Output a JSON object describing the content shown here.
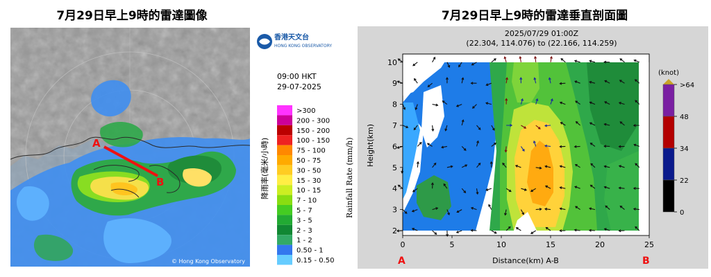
{
  "left_title": "7月29日早上9時的雷達圖像",
  "right_title": "7月29日早上9時的雷達垂直剖面圖",
  "radar": {
    "copyright": "© Hong Kong Observatory",
    "point_a": "A",
    "point_b": "B",
    "logo_cn": "香港天文台",
    "logo_en": "HONG KONG OBSERVATORY",
    "time": "09:00 HKT",
    "date": "29-07-2025",
    "legend_title_cn": "降雨率(毫米/小時)",
    "legend_title_en": "Rainfall Rate (mm/h)",
    "legend": [
      {
        "label": ">300",
        "color": "#ff33ff"
      },
      {
        "label": "200 - 300",
        "color": "#cc0099"
      },
      {
        "label": "150 - 200",
        "color": "#bb0000"
      },
      {
        "label": "100 - 150",
        "color": "#ee2222"
      },
      {
        "label": "75 - 100",
        "color": "#ff8800"
      },
      {
        "label": "50 - 75",
        "color": "#ffaa00"
      },
      {
        "label": "30 - 50",
        "color": "#ffcc22"
      },
      {
        "label": "15 - 30",
        "color": "#ffee44"
      },
      {
        "label": "10 - 15",
        "color": "#ccee22"
      },
      {
        "label": "7 - 10",
        "color": "#88dd11"
      },
      {
        "label": "5 - 7",
        "color": "#44cc22"
      },
      {
        "label": "3 - 5",
        "color": "#22aa33"
      },
      {
        "label": "2 - 3",
        "color": "#118833"
      },
      {
        "label": "1 - 2",
        "color": "#33aa66"
      },
      {
        "label": "0.50 - 1",
        "color": "#3377ee"
      },
      {
        "label": "0.15 - 0.50",
        "color": "#66ccff"
      }
    ]
  },
  "profile": {
    "header_time": "2025/07/29 01:00Z",
    "header_coords": "(22.304, 114.076) to (22.166, 114.259)",
    "xlabel": "Distance(km) A-B",
    "ylabel": "Height(km)",
    "x_ticks": [
      "0",
      "5",
      "10",
      "15",
      "20",
      "25"
    ],
    "y_ticks": [
      "2",
      "3",
      "4",
      "5",
      "6",
      "7",
      "8",
      "9",
      "10"
    ],
    "point_a": "A",
    "point_b": "B",
    "colorbar_unit": "(knot)",
    "colorbar_labels": [
      ">64",
      "48",
      "34",
      "22",
      "0"
    ],
    "colorbar_colors": [
      "#7a1fa2",
      "#b30000",
      "#0a1a8c",
      "#000000"
    ]
  }
}
